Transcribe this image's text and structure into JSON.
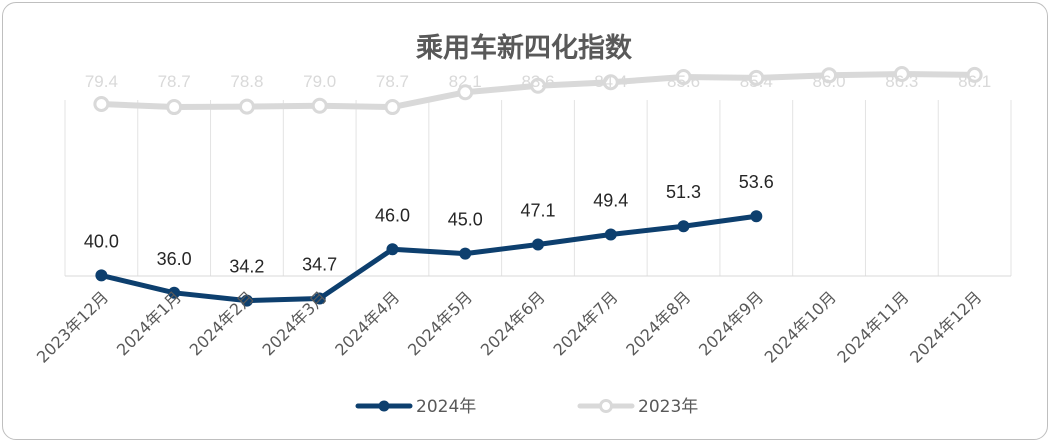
{
  "chart_data": {
    "type": "line",
    "title": "乘用车新四化指数",
    "categories": [
      "2023年12月",
      "2024年1月",
      "2024年2月",
      "2024年3月",
      "2024年4月",
      "2024年5月",
      "2024年6月",
      "2024年7月",
      "2024年8月",
      "2024年9月",
      "2024年10月",
      "2024年11月",
      "2024年12月"
    ],
    "series": [
      {
        "name": "2024年",
        "color": "#0d3f6e",
        "values": [
          40.0,
          36.0,
          34.2,
          34.7,
          46.0,
          45.0,
          47.1,
          49.4,
          51.3,
          53.6,
          null,
          null,
          null
        ]
      },
      {
        "name": "2023年",
        "color": "#d9d9d9",
        "values": [
          79.4,
          78.7,
          78.8,
          79.0,
          78.7,
          82.1,
          83.6,
          84.4,
          85.6,
          85.4,
          86.0,
          86.3,
          86.1
        ]
      }
    ],
    "data_labels": true,
    "grid": "vertical",
    "legend_position": "bottom"
  }
}
